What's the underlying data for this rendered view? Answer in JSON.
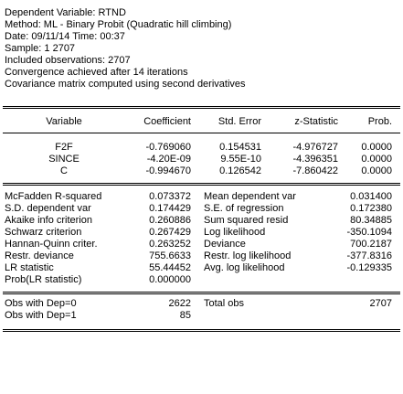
{
  "header": {
    "dependent": "Dependent Variable: RTND",
    "method": "Method: ML - Binary Probit (Quadratic hill climbing)",
    "date": "Date: 09/11/14   Time: 00:37",
    "sample": "Sample: 1 2707",
    "observations": "Included observations: 2707",
    "convergence": "Convergence achieved after 14 iterations",
    "covariance": "Covariance matrix computed using second derivatives"
  },
  "coef_table": {
    "headers": [
      "Variable",
      "Coefficient",
      "Std. Error",
      "z-Statistic",
      "Prob."
    ],
    "rows": [
      [
        "F2F",
        "-0.769060",
        "0.154531",
        "-4.976727",
        "0.0000"
      ],
      [
        "SINCE",
        "-4.20E-09",
        "9.55E-10",
        "-4.396351",
        "0.0000"
      ],
      [
        "C",
        "-0.994670",
        "0.126542",
        "-7.860422",
        "0.0000"
      ]
    ]
  },
  "stats": [
    [
      "McFadden R-squared",
      "0.073372",
      "Mean dependent var",
      "0.031400"
    ],
    [
      "S.D. dependent var",
      "0.174429",
      "S.E. of regression",
      "0.172380"
    ],
    [
      "Akaike info criterion",
      "0.260886",
      "Sum squared resid",
      "80.34885"
    ],
    [
      "Schwarz criterion",
      "0.267429",
      "Log likelihood",
      "-350.1094"
    ],
    [
      "Hannan-Quinn criter.",
      "0.263252",
      "Deviance",
      "700.2187"
    ],
    [
      "Restr. deviance",
      "755.6633",
      "Restr. log likelihood",
      "-377.8316"
    ],
    [
      "LR statistic",
      "55.44452",
      "Avg. log likelihood",
      "-0.129335"
    ],
    [
      "Prob(LR statistic)",
      "0.000000",
      "",
      ""
    ]
  ],
  "obs": [
    [
      "Obs with Dep=0",
      "2622",
      "Total obs",
      "2707"
    ],
    [
      "Obs with Dep=1",
      "85",
      "",
      ""
    ]
  ]
}
